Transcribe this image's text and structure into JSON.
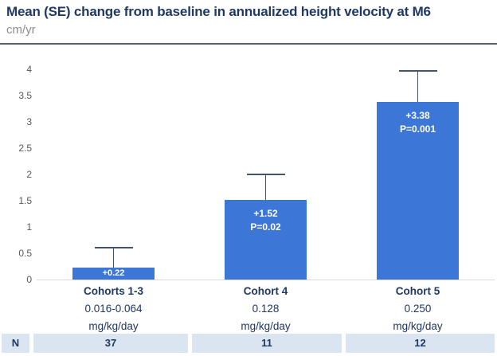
{
  "header": {
    "title": "Mean (SE) change from baseline in annualized height velocity at M6",
    "unit_label": "cm/yr"
  },
  "chart_data": {
    "type": "bar",
    "title": "Mean (SE) change from baseline in annualized height velocity at M6",
    "ylabel": "cm/yr",
    "ylim": [
      0,
      4
    ],
    "yticks": [
      0,
      0.5,
      1,
      1.5,
      2,
      2.5,
      3,
      3.5,
      4
    ],
    "grid": false,
    "legend": "none",
    "categories": [
      {
        "name": "Cohorts 1-3",
        "dose": "0.016-0.064",
        "unit": "mg/kg/day"
      },
      {
        "name": "Cohort 4",
        "dose": "0.128",
        "unit": "mg/kg/day"
      },
      {
        "name": "Cohort 5",
        "dose": "0.250",
        "unit": "mg/kg/day"
      }
    ],
    "values": [
      0.22,
      1.52,
      3.38
    ],
    "error_bar_tops": [
      0.62,
      2.02,
      3.98
    ],
    "bar_labels": [
      [
        "+0.22"
      ],
      [
        "+1.52",
        "P=0.02"
      ],
      [
        "+3.38",
        "P=0.001"
      ]
    ],
    "colors": {
      "bar": "#3c77d7",
      "bar_label_text": "#ffffff",
      "error_bar": "#44546a",
      "title_text": "#1f3864",
      "axis_text": "#595959",
      "baseline": "#d9d9d9",
      "n_row_background": "#dbe5f1"
    }
  },
  "n_row": {
    "label": "N",
    "values": [
      "37",
      "11",
      "12"
    ]
  }
}
